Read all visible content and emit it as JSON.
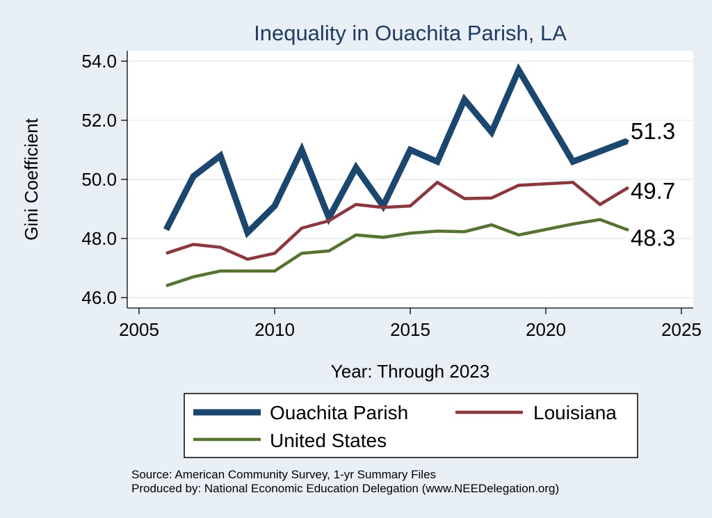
{
  "chart_data": {
    "type": "line",
    "title": "Inequality in Ouachita Parish, LA",
    "xlabel": "Year: Through 2023",
    "ylabel": "Gini Coefficient",
    "xlim": [
      2005,
      2025
    ],
    "ylim": [
      46.0,
      54.0
    ],
    "xticks": [
      2005,
      2010,
      2015,
      2020,
      2025
    ],
    "xtick_labels": [
      "2005",
      "2010",
      "2015",
      "2020",
      "2025"
    ],
    "yticks": [
      46,
      48,
      50,
      52,
      54
    ],
    "ytick_labels": [
      "46.0",
      "48.0",
      "50.0",
      "52.0",
      "54.0"
    ],
    "grid": true,
    "legend_position": "bottom",
    "series": [
      {
        "name": "Ouachita Parish",
        "color": "#1a476f",
        "x": [
          2006,
          2007,
          2008,
          2009,
          2010,
          2011,
          2012,
          2013,
          2014,
          2015,
          2016,
          2017,
          2018,
          2019,
          2021,
          2023
        ],
        "values": [
          48.3,
          50.1,
          50.8,
          48.2,
          49.1,
          51.0,
          48.7,
          50.4,
          49.1,
          51.0,
          50.6,
          52.7,
          51.6,
          53.7,
          50.6,
          51.3
        ],
        "end_label": "51.3"
      },
      {
        "name": "Louisiana",
        "color": "#90353b",
        "x": [
          2006,
          2007,
          2008,
          2009,
          2010,
          2011,
          2012,
          2013,
          2014,
          2015,
          2016,
          2017,
          2018,
          2019,
          2021,
          2022,
          2023
        ],
        "values": [
          47.5,
          47.8,
          47.7,
          47.3,
          47.5,
          48.35,
          48.6,
          49.15,
          49.05,
          49.1,
          49.9,
          49.35,
          49.37,
          49.8,
          49.9,
          49.15,
          49.7
        ],
        "end_label": "49.7"
      },
      {
        "name": "United States",
        "color": "#55752f",
        "x": [
          2006,
          2007,
          2008,
          2009,
          2010,
          2011,
          2012,
          2013,
          2014,
          2015,
          2016,
          2017,
          2018,
          2019,
          2021,
          2022,
          2023
        ],
        "values": [
          46.4,
          46.7,
          46.9,
          46.9,
          46.9,
          47.5,
          47.58,
          48.12,
          48.04,
          48.18,
          48.25,
          48.23,
          48.46,
          48.12,
          48.49,
          48.64,
          48.3
        ],
        "end_label": "48.3"
      }
    ],
    "notes": [
      "Source: American Community Survey, 1-yr Summary Files",
      "Produced by: National Economic Education Delegation (www.NEEDelegation.org)"
    ]
  }
}
